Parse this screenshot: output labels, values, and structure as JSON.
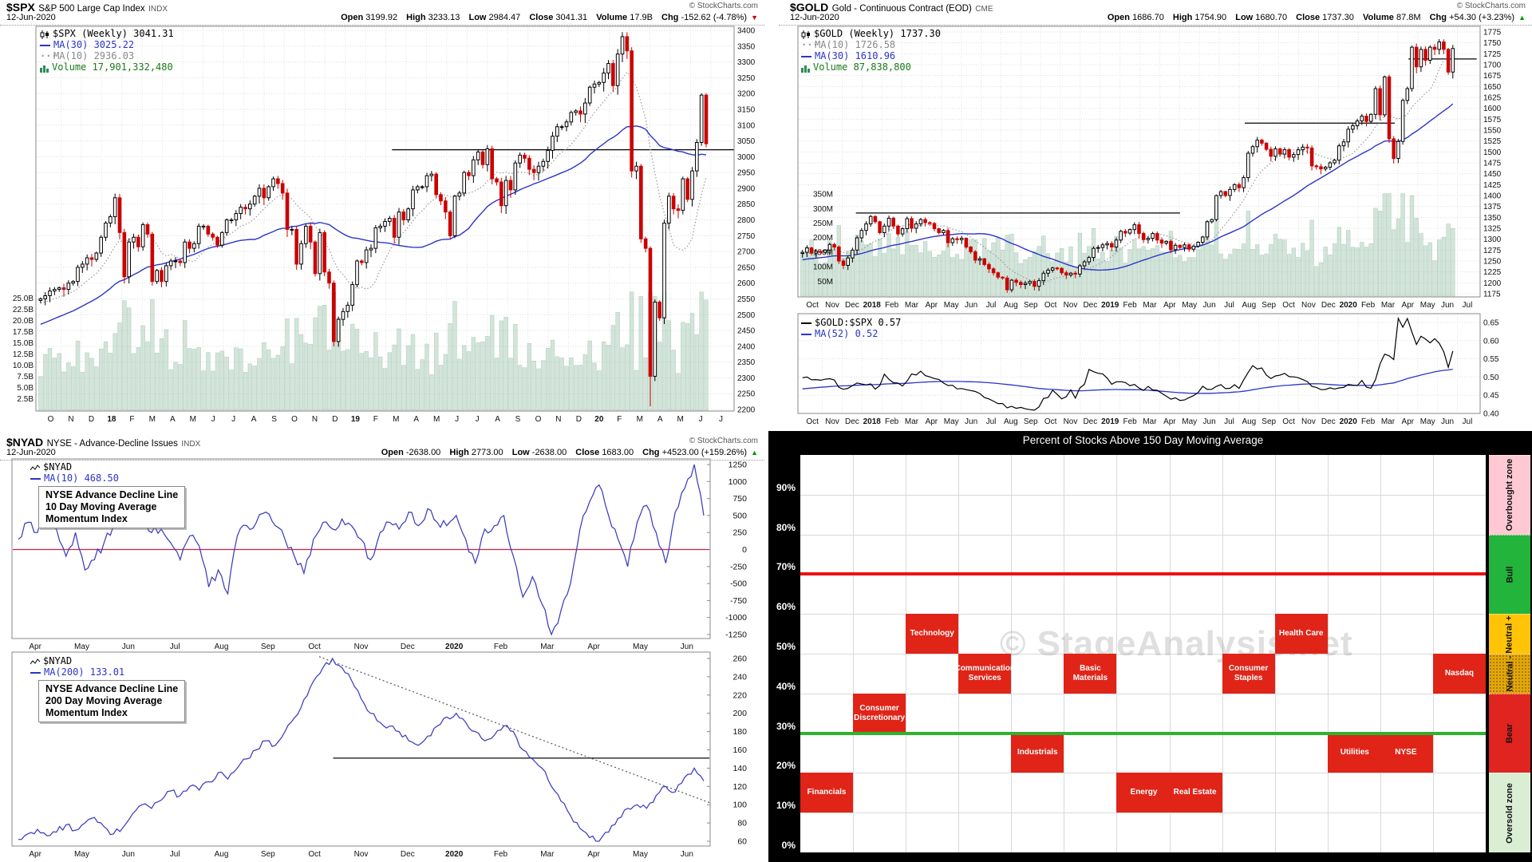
{
  "credit": "© StockCharts.com",
  "labels": {
    "open": "Open",
    "high": "High",
    "low": "Low",
    "close": "Close",
    "volume": "Volume",
    "chg": "Chg"
  },
  "spx": {
    "symbol": "$SPX",
    "name": "S&P 500 Large Cap Index",
    "exchange": "INDX",
    "date": "12-Jun-2020",
    "quote": {
      "open": "3199.92",
      "high": "3233.13",
      "low": "2984.47",
      "close": "3041.31",
      "volume": "17.9B",
      "chg": "-152.62 (-4.78%)",
      "arrow": "▼"
    },
    "legend": {
      "main": "$SPX (Weekly) 3041.31",
      "ma30": "MA(30) 3025.22",
      "ma10": "MA(10) 2936.03",
      "volume": "Volume 17,901,332,480"
    },
    "chart_data": {
      "type": "candlestick",
      "timeframe": "weekly",
      "x_labels": [
        "O",
        "N",
        "D",
        "18",
        "F",
        "M",
        "A",
        "M",
        "J",
        "J",
        "A",
        "S",
        "O",
        "N",
        "D",
        "19",
        "F",
        "M",
        "A",
        "M",
        "J",
        "J",
        "A",
        "S",
        "O",
        "N",
        "D",
        "20",
        "F",
        "M",
        "A",
        "M",
        "J",
        "J"
      ],
      "y_min": 2200,
      "y_max": 3400,
      "y_step": 50,
      "volume_axis": [
        {
          "t": "25.0B",
          "v": 25
        },
        {
          "t": "22.5B",
          "v": 22.5
        },
        {
          "t": "20.0B",
          "v": 20
        },
        {
          "t": "17.5B",
          "v": 17.5
        },
        {
          "t": "15.0B",
          "v": 15
        },
        {
          "t": "12.5B",
          "v": 12.5
        },
        {
          "t": "10.0B",
          "v": 10
        },
        {
          "t": "7.5B",
          "v": 7.5
        },
        {
          "t": "5.0B",
          "v": 5
        },
        {
          "t": "2.5B",
          "v": 2.5
        }
      ],
      "closes": [
        2550,
        2560,
        2575,
        2580,
        2585,
        2580,
        2600,
        2605,
        2650,
        2660,
        2680,
        2675,
        2695,
        2745,
        2790,
        2810,
        2870,
        2760,
        2620,
        2730,
        2745,
        2715,
        2785,
        2755,
        2605,
        2640,
        2605,
        2655,
        2670,
        2670,
        2665,
        2730,
        2710,
        2725,
        2780,
        2780,
        2755,
        2745,
        2720,
        2760,
        2800,
        2800,
        2820,
        2840,
        2835,
        2850,
        2875,
        2900,
        2870,
        2905,
        2930,
        2915,
        2885,
        2770,
        2770,
        2660,
        2725,
        2780,
        2730,
        2630,
        2760,
        2635,
        2600,
        2415,
        2485,
        2510,
        2530,
        2595,
        2670,
        2665,
        2705,
        2710,
        2775,
        2780,
        2795,
        2805,
        2745,
        2825,
        2800,
        2835,
        2895,
        2905,
        2905,
        2940,
        2945,
        2880,
        2860,
        2825,
        2750,
        2875,
        2885,
        2950,
        2940,
        2990,
        3015,
        2975,
        3025,
        2930,
        2920,
        2845,
        2925,
        2895,
        2980,
        3005,
        2995,
        2960,
        2950,
        2970,
        2985,
        3020,
        3065,
        3095,
        3095,
        3110,
        3140,
        3145,
        3135,
        3170,
        3220,
        3230,
        3235,
        3265,
        3295,
        3225,
        3325,
        3380,
        3335,
        2955,
        2970,
        2740,
        2710,
        2305,
        2540,
        2490,
        2790,
        2875,
        2835,
        2830,
        2930,
        2865,
        2955,
        3045,
        3195,
        3041
      ],
      "resistance_lines": [
        {
          "value": 3022,
          "from": 0.51,
          "to": 1.0
        }
      ]
    }
  },
  "gold": {
    "symbol": "$GOLD",
    "name": "Gold - Continuous Contract (EOD)",
    "exchange": "CME",
    "date": "12-Jun-2020",
    "quote": {
      "open": "1686.70",
      "high": "1754.90",
      "low": "1680.70",
      "close": "1737.30",
      "volume": "87.8M",
      "chg": "+54.30 (+3.23%)",
      "arrow": "▲"
    },
    "legend": {
      "main": "$GOLD (Weekly) 1737.30",
      "ma10": "MA(10) 1726.58",
      "ma30": "MA(30) 1610.96",
      "volume": "Volume 87,838,800"
    },
    "chart_data": {
      "type": "candlestick",
      "timeframe": "weekly",
      "x_labels": [
        "Oct",
        "Nov",
        "Dec",
        "2018",
        "Feb",
        "Mar",
        "Apr",
        "May",
        "Jun",
        "Jul",
        "Aug",
        "Sep",
        "Oct",
        "Nov",
        "Dec",
        "2019",
        "Feb",
        "Mar",
        "Apr",
        "May",
        "Jun",
        "Jul",
        "Aug",
        "Sep",
        "Oct",
        "Nov",
        "Dec",
        "2020",
        "Feb",
        "Mar",
        "Apr",
        "May",
        "Jun",
        "Jul"
      ],
      "y_min": 1175,
      "y_max": 1775,
      "y_step": 25,
      "volume_axis": [
        {
          "t": "350M",
          "v": 350
        },
        {
          "t": "300M",
          "v": 300
        },
        {
          "t": "250M",
          "v": 250
        },
        {
          "t": "200M",
          "v": 200
        },
        {
          "t": "150M",
          "v": 150
        },
        {
          "t": "100M",
          "v": 100
        },
        {
          "t": "50M",
          "v": 50
        }
      ],
      "closes": [
        1270,
        1280,
        1268,
        1272,
        1270,
        1275,
        1288,
        1282,
        1250,
        1240,
        1257,
        1275,
        1303,
        1320,
        1335,
        1352,
        1340,
        1315,
        1330,
        1348,
        1330,
        1312,
        1324,
        1347,
        1325,
        1335,
        1345,
        1338,
        1336,
        1324,
        1315,
        1320,
        1292,
        1301,
        1299,
        1302,
        1282,
        1271,
        1252,
        1255,
        1242,
        1232,
        1223,
        1213,
        1211,
        1184,
        1206,
        1201,
        1196,
        1199,
        1203,
        1192,
        1205,
        1222,
        1229,
        1234,
        1233,
        1223,
        1218,
        1222,
        1220,
        1239,
        1248,
        1258,
        1279,
        1281,
        1287,
        1290,
        1282,
        1298,
        1318,
        1314,
        1322,
        1333,
        1313,
        1299,
        1302,
        1313,
        1298,
        1291,
        1295,
        1276,
        1286,
        1281,
        1287,
        1277,
        1284,
        1293,
        1305,
        1340,
        1345,
        1400,
        1409,
        1400,
        1414,
        1425,
        1418,
        1441,
        1497,
        1512,
        1527,
        1520,
        1506,
        1490,
        1507,
        1495,
        1505,
        1488,
        1494,
        1505,
        1511,
        1509,
        1468,
        1466,
        1461,
        1465,
        1475,
        1481,
        1514,
        1523,
        1552,
        1560,
        1571,
        1582,
        1570,
        1586,
        1645,
        1585,
        1672,
        1530,
        1485,
        1524,
        1618,
        1645,
        1740,
        1695,
        1735,
        1710,
        1740,
        1735,
        1752,
        1735,
        1683,
        1737
      ],
      "resistance_lines": [
        {
          "value": 1360,
          "from": 0.085,
          "to": 0.56
        },
        {
          "value": 1566,
          "from": 0.655,
          "to": 0.875
        },
        {
          "value": 1713,
          "from": 0.895,
          "to": 0.995
        }
      ]
    }
  },
  "ratio": {
    "legend": {
      "main": "$GOLD:$SPX 0.57",
      "ma": "MA(52) 0.52"
    },
    "chart_data": {
      "type": "line",
      "y_ticks": [
        0.65,
        0.6,
        0.55,
        0.5,
        0.45,
        0.4
      ],
      "series_note": "gold weekly close divided by spx weekly close",
      "ma_window": 52
    }
  },
  "nyad": {
    "symbol": "$NYAD",
    "name": "NYSE - Advance-Decline Issues",
    "exchange": "INDX",
    "date": "12-Jun-2020",
    "quote": {
      "open": "-2638.00",
      "high": "2773.00",
      "low": "-2638.00",
      "close": "1683.00",
      "chg": "+4523.00 (+159.26%)",
      "arrow": "▲"
    },
    "chart1": {
      "legend": {
        "symbol": "$NYAD",
        "ma": "MA(10) 468.50"
      },
      "annotation": [
        "NYSE Advance Decline Line",
        "10 Day Moving Average",
        "Momentum Index"
      ],
      "chart_data": {
        "type": "line",
        "x_labels": [
          "Apr",
          "May",
          "Jun",
          "Jul",
          "Aug",
          "Sep",
          "Oct",
          "Nov",
          "Dec",
          "2020",
          "Feb",
          "Mar",
          "Apr",
          "May",
          "Jun"
        ],
        "y_ticks": [
          1250,
          1000,
          750,
          500,
          250,
          0,
          -250,
          -500,
          -750,
          -1000,
          -1250
        ],
        "zero_line": {
          "value": 0,
          "color": "#cc2244"
        },
        "values": [
          150,
          400,
          250,
          500,
          300,
          -100,
          250,
          -300,
          -150,
          100,
          350,
          600,
          450,
          550,
          250,
          300,
          100,
          -150,
          200,
          50,
          -550,
          -300,
          -650,
          200,
          350,
          400,
          550,
          350,
          150,
          -100,
          -350,
          150,
          400,
          300,
          450,
          350,
          150,
          -150,
          250,
          400,
          300,
          550,
          350,
          600,
          400,
          350,
          500,
          150,
          -200,
          300,
          350,
          500,
          -100,
          -700,
          -400,
          -800,
          -1250,
          -900,
          -500,
          300,
          700,
          950,
          500,
          150,
          -250,
          400,
          650,
          250,
          -200,
          550,
          900,
          1250,
          500
        ]
      }
    },
    "chart2": {
      "legend": {
        "symbol": "$NYAD",
        "ma": "MA(200) 133.01"
      },
      "annotation": [
        "NYSE Advance Decline Line",
        "200 Day Moving Average",
        "Momentum Index"
      ],
      "chart_data": {
        "type": "line",
        "x_labels": [
          "Apr",
          "May",
          "Jun",
          "Jul",
          "Aug",
          "Sep",
          "Oct",
          "Nov",
          "Dec",
          "2020",
          "Feb",
          "Mar",
          "Apr",
          "May",
          "Jun"
        ],
        "y_ticks": [
          260,
          240,
          220,
          200,
          180,
          160,
          140,
          120,
          100,
          80,
          60
        ],
        "hline": {
          "value": 151,
          "from": 0.46,
          "to": 1.0
        },
        "trendline": {
          "x1": 0.44,
          "v1": 262,
          "x2": 1.0,
          "v2": 102
        },
        "values": [
          62,
          68,
          73,
          66,
          70,
          78,
          72,
          80,
          86,
          76,
          68,
          75,
          90,
          100,
          96,
          105,
          115,
          110,
          120,
          116,
          125,
          135,
          128,
          140,
          150,
          160,
          170,
          165,
          180,
          195,
          215,
          235,
          250,
          260,
          250,
          236,
          216,
          200,
          190,
          186,
          180,
          170,
          165,
          175,
          186,
          196,
          200,
          190,
          180,
          170,
          176,
          186,
          180,
          160,
          150,
          140,
          120,
          104,
          88,
          74,
          64,
          60,
          70,
          85,
          96,
          100,
          96,
          110,
          120,
          114,
          130,
          140,
          126
        ]
      }
    }
  },
  "sectors": {
    "title": "Percent of Stocks Above 150 Day Moving Average",
    "watermark": "© StageAnalysis.net",
    "box_color": "#e02418",
    "columns": 13,
    "y_labels": [
      {
        "t": "90%",
        "v": 90
      },
      {
        "t": "80%",
        "v": 80
      },
      {
        "t": "70%",
        "v": 70
      },
      {
        "t": "60%",
        "v": 60
      },
      {
        "t": "50%",
        "v": 50
      },
      {
        "t": "40%",
        "v": 40
      },
      {
        "t": "30%",
        "v": 30
      },
      {
        "t": "20%",
        "v": 20
      },
      {
        "t": "10%",
        "v": 10
      },
      {
        "t": "0%",
        "v": 0
      }
    ],
    "threshold_lines": [
      {
        "value": 70,
        "color": "#f01010"
      },
      {
        "value": 30,
        "color": "#2db42d"
      }
    ],
    "boxes": [
      {
        "labels": [
          "Financials"
        ],
        "col": 0,
        "span": 1,
        "band": [
          10,
          20
        ]
      },
      {
        "labels": [
          "Consumer Discretionary"
        ],
        "col": 1,
        "span": 1,
        "band": [
          30,
          40
        ]
      },
      {
        "labels": [
          "Technology"
        ],
        "col": 2,
        "span": 1,
        "band": [
          50,
          60
        ]
      },
      {
        "labels": [
          "Communication Services"
        ],
        "col": 3,
        "span": 1,
        "band": [
          40,
          50
        ]
      },
      {
        "labels": [
          "Industrials"
        ],
        "col": 4,
        "span": 1,
        "band": [
          20,
          30
        ]
      },
      {
        "labels": [
          "Basic Materials"
        ],
        "col": 5,
        "span": 1,
        "band": [
          40,
          50
        ]
      },
      {
        "labels": [
          "Energy",
          "Real Estate"
        ],
        "col": 6,
        "span": 2,
        "band": [
          10,
          20
        ]
      },
      {
        "labels": [
          "Consumer Staples"
        ],
        "col": 8,
        "span": 1,
        "band": [
          40,
          50
        ]
      },
      {
        "labels": [
          "Health Care"
        ],
        "col": 9,
        "span": 1,
        "band": [
          50,
          60
        ]
      },
      {
        "labels": [
          "Utilities",
          "NYSE"
        ],
        "col": 10,
        "span": 2,
        "band": [
          20,
          30
        ]
      },
      {
        "labels": [
          "Nasdaq"
        ],
        "col": 12,
        "span": 1,
        "band": [
          40,
          50
        ]
      }
    ],
    "zones": [
      {
        "label": "Overbought zone",
        "from": 80,
        "to": 100,
        "color": "#ffc9d3"
      },
      {
        "label": "Bull",
        "from": 60,
        "to": 80,
        "color": "#23b43c"
      },
      {
        "label": "Neutral +",
        "from": 50,
        "to": 60,
        "color": "#ffc408"
      },
      {
        "label": "Neutral -",
        "from": 40,
        "to": 50,
        "color": "#e2a80a",
        "dotted": true
      },
      {
        "label": "Bear",
        "from": 20,
        "to": 40,
        "color": "#e02420"
      },
      {
        "label": "Oversold zone",
        "from": 0,
        "to": 20,
        "color": "#d9eed3"
      }
    ]
  }
}
